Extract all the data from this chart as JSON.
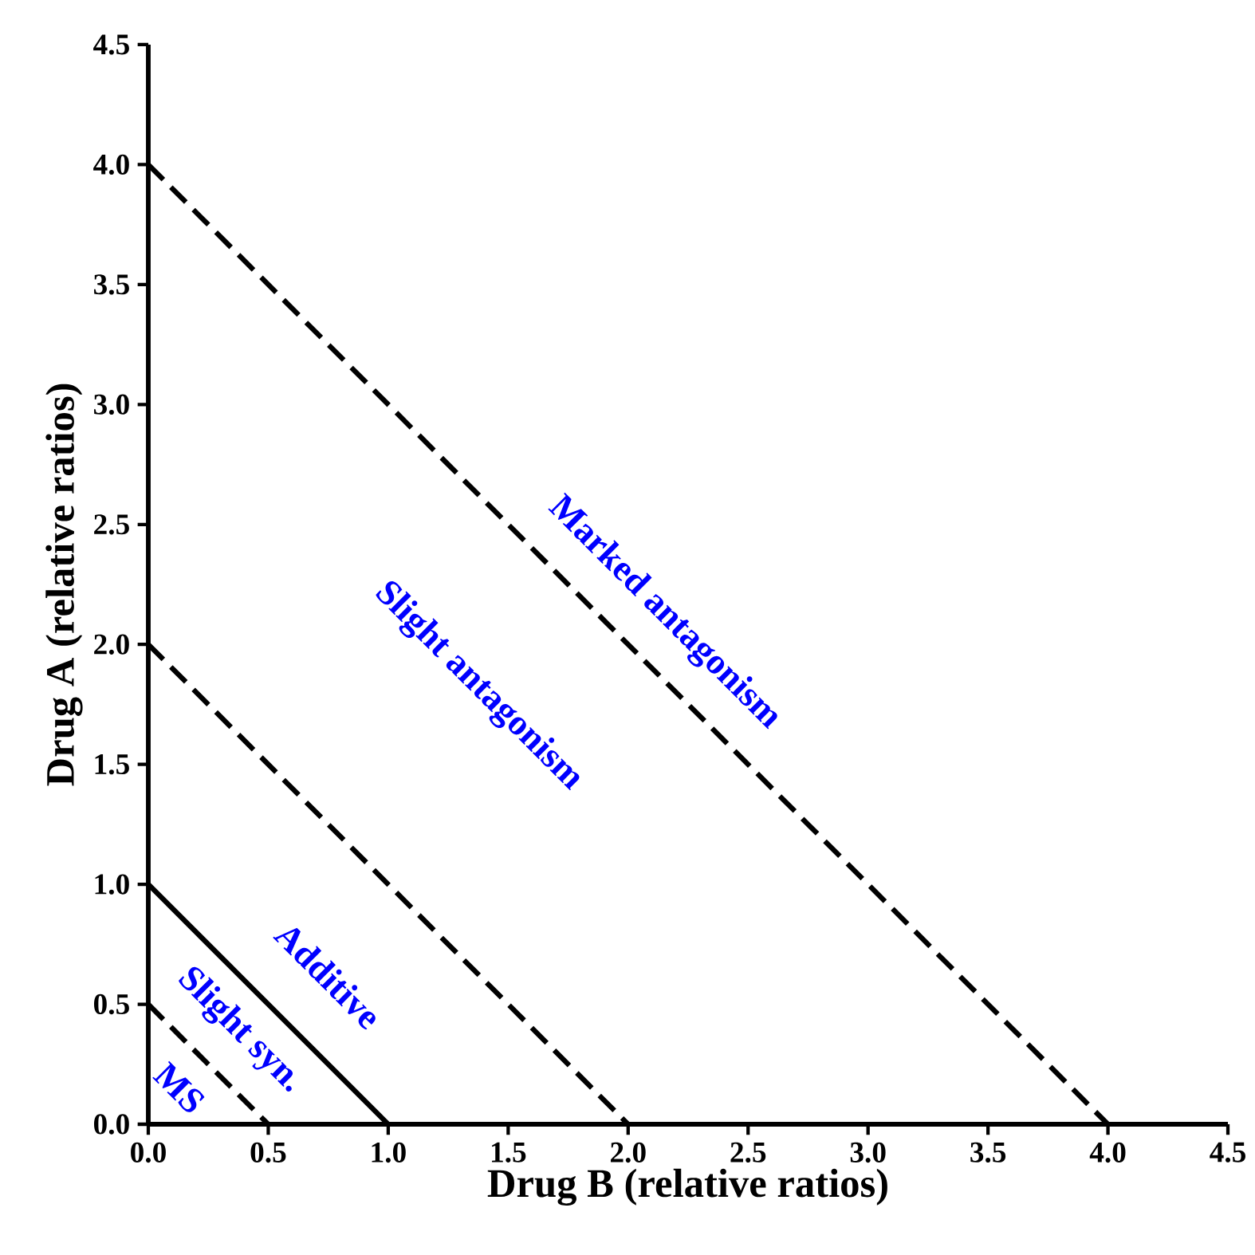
{
  "chart_data": {
    "type": "line",
    "xlabel": "Drug B (relative ratios)",
    "ylabel": "Drug A (relative ratios)",
    "series": [
      {
        "color": "#000000",
        "line_style": "dashed",
        "x": [
          0,
          0.5
        ],
        "values": [
          0.5,
          0
        ]
      },
      {
        "color": "#000000",
        "line_style": "solid",
        "x": [
          0,
          1.0
        ],
        "values": [
          1.0,
          0
        ]
      },
      {
        "color": "#000000",
        "line_style": "dashed",
        "x": [
          0,
          2.0
        ],
        "values": [
          2.0,
          0
        ]
      },
      {
        "color": "#000000",
        "line_style": "dashed",
        "x": [
          0,
          4.0
        ],
        "values": [
          4.0,
          0
        ]
      }
    ],
    "xlim": [
      0,
      4.5
    ],
    "ylim": [
      0,
      4.5
    ],
    "xticks": [
      {
        "value": 0,
        "label": "0.0"
      },
      {
        "value": 0.5,
        "label": "0.5"
      },
      {
        "value": 1,
        "label": "1.0"
      },
      {
        "value": 1.5,
        "label": "1.5"
      },
      {
        "value": 2,
        "label": "2.0"
      },
      {
        "value": 2.5,
        "label": "2.5"
      },
      {
        "value": 3,
        "label": "3.0"
      },
      {
        "value": 3.5,
        "label": "3.5"
      },
      {
        "value": 4,
        "label": "4.0"
      },
      {
        "value": 4.5,
        "label": "4.5"
      }
    ],
    "yticks": [
      {
        "value": 0,
        "label": "0.0"
      },
      {
        "value": 0.5,
        "label": "0.5"
      },
      {
        "value": 1,
        "label": "1.0"
      },
      {
        "value": 1.5,
        "label": "1.5"
      },
      {
        "value": 2,
        "label": "2.0"
      },
      {
        "value": 2.5,
        "label": "2.5"
      },
      {
        "value": 3,
        "label": "3.0"
      },
      {
        "value": 3.5,
        "label": "3.5"
      },
      {
        "value": 4,
        "label": "4.0"
      },
      {
        "value": 4.5,
        "label": "4.5"
      }
    ],
    "annotations": [
      "MS",
      "Slight syn.",
      "Additive",
      "Slight antagonism",
      "Marked antagonism"
    ]
  }
}
